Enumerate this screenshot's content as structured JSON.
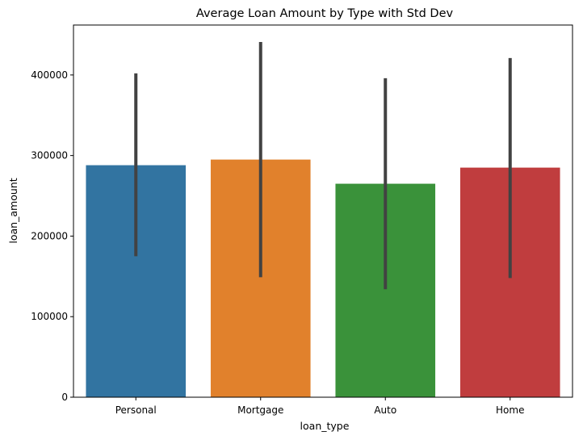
{
  "chart_data": {
    "type": "bar",
    "title": "Average Loan Amount by Type with Std Dev",
    "xlabel": "loan_type",
    "ylabel": "loan_amount",
    "categories": [
      "Personal",
      "Mortgage",
      "Auto",
      "Home"
    ],
    "values": [
      288000,
      295000,
      265000,
      285000
    ],
    "error_low": [
      175000,
      149000,
      134000,
      148000
    ],
    "error_high": [
      402000,
      441000,
      396000,
      421000
    ],
    "colors": [
      "#3274a1",
      "#e1812c",
      "#3a923a",
      "#c03d3e"
    ],
    "error_color": "#424242",
    "ylim": [
      0,
      462000
    ],
    "yticks": [
      0,
      100000,
      200000,
      300000,
      400000
    ],
    "ytick_labels": [
      "0",
      "100000",
      "200000",
      "300000",
      "400000"
    ],
    "grid": false,
    "legend": "none"
  }
}
